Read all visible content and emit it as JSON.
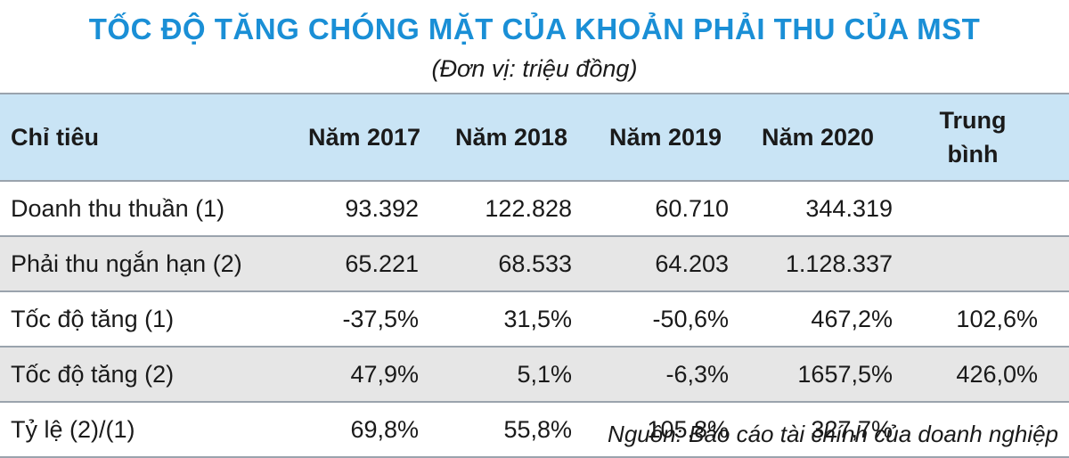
{
  "title": "TỐC ĐỘ TĂNG CHÓNG MẶT CỦA KHOẢN PHẢI THU CỦA MST",
  "unit": "(Đơn vị: triệu đồng)",
  "table": {
    "headers": [
      "Chỉ tiêu",
      "Năm 2017",
      "Năm 2018",
      "Năm 2019",
      "Năm 2020",
      "Trung bình"
    ],
    "rows": [
      {
        "label": "Doanh thu thuần (1)",
        "v2017": "93.392",
        "v2018": "122.828",
        "v2019": "60.710",
        "v2020": "344.319",
        "avg": ""
      },
      {
        "label": "Phải thu ngắn hạn (2)",
        "v2017": "65.221",
        "v2018": "68.533",
        "v2019": "64.203",
        "v2020": "1.128.337",
        "avg": ""
      },
      {
        "label": "Tốc độ tăng (1)",
        "v2017": "-37,5%",
        "v2018": "31,5%",
        "v2019": "-50,6%",
        "v2020": "467,2%",
        "avg": "102,6%"
      },
      {
        "label": "Tốc độ tăng (2)",
        "v2017": "47,9%",
        "v2018": "5,1%",
        "v2019": "-6,3%",
        "v2020": "1657,5%",
        "avg": "426,0%"
      },
      {
        "label": "Tỷ lệ (2)/(1)",
        "v2017": "69,8%",
        "v2018": "55,8%",
        "v2019": "105,8%",
        "v2020": "327,7%",
        "avg": ""
      }
    ]
  },
  "source": "Nguồn: Báo cáo tài chính của doanh nghiệp",
  "colors": {
    "title": "#1a8fd6",
    "header_bg": "#c9e4f5",
    "shaded_row_bg": "#e6e6e6"
  }
}
